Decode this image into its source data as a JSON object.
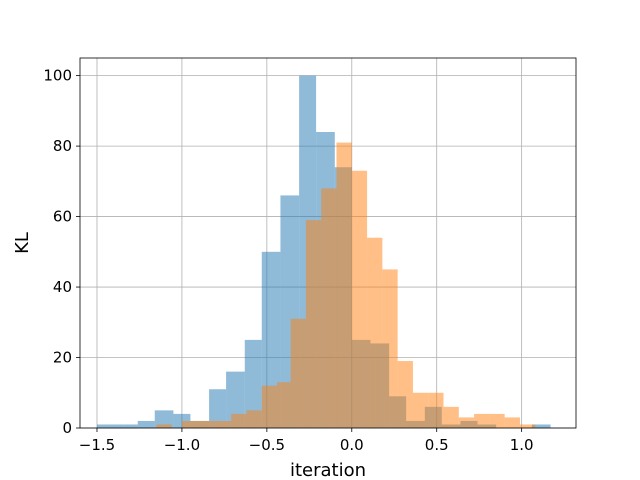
{
  "chart_data": {
    "type": "bar",
    "xlabel": "iteration",
    "ylabel": "KL",
    "xlim": [
      -1.6,
      1.32
    ],
    "ylim": [
      0,
      105
    ],
    "x_ticks": [
      -1.5,
      -1.0,
      -0.5,
      0.0,
      0.5,
      1.0
    ],
    "x_tick_labels": [
      "−1.5",
      "−1.0",
      "−0.5",
      "0.0",
      "0.5",
      "1.0"
    ],
    "y_ticks": [
      0,
      20,
      40,
      60,
      80,
      100
    ],
    "y_tick_labels": [
      "0",
      "20",
      "40",
      "60",
      "80",
      "100"
    ],
    "grid": true,
    "series": [
      {
        "color": "#1f77b4",
        "opacity": 0.5,
        "bins": [
          {
            "x0": -1.5,
            "x1": -1.34,
            "count": 1
          },
          {
            "x0": -1.34,
            "x1": -1.26,
            "count": 1
          },
          {
            "x0": -1.26,
            "x1": -1.16,
            "count": 2
          },
          {
            "x0": -1.16,
            "x1": -1.05,
            "count": 5
          },
          {
            "x0": -1.05,
            "x1": -0.95,
            "count": 4
          },
          {
            "x0": -0.95,
            "x1": -0.84,
            "count": 2
          },
          {
            "x0": -0.84,
            "x1": -0.74,
            "count": 11
          },
          {
            "x0": -0.74,
            "x1": -0.63,
            "count": 16
          },
          {
            "x0": -0.63,
            "x1": -0.53,
            "count": 25
          },
          {
            "x0": -0.53,
            "x1": -0.42,
            "count": 50
          },
          {
            "x0": -0.42,
            "x1": -0.31,
            "count": 66
          },
          {
            "x0": -0.31,
            "x1": -0.21,
            "count": 100
          },
          {
            "x0": -0.21,
            "x1": -0.1,
            "count": 84
          },
          {
            "x0": -0.1,
            "x1": 0.0,
            "count": 74
          },
          {
            "x0": 0.0,
            "x1": 0.11,
            "count": 25
          },
          {
            "x0": 0.11,
            "x1": 0.22,
            "count": 24
          },
          {
            "x0": 0.22,
            "x1": 0.32,
            "count": 9
          },
          {
            "x0": 0.32,
            "x1": 0.43,
            "count": 2
          },
          {
            "x0": 0.43,
            "x1": 0.53,
            "count": 6
          },
          {
            "x0": 0.53,
            "x1": 0.64,
            "count": 1
          },
          {
            "x0": 0.64,
            "x1": 0.74,
            "count": 2
          },
          {
            "x0": 0.74,
            "x1": 0.85,
            "count": 1
          },
          {
            "x0": 1.06,
            "x1": 1.17,
            "count": 1
          }
        ]
      },
      {
        "color": "#ff7f0e",
        "opacity": 0.5,
        "bins": [
          {
            "x0": -1.15,
            "x1": -1.06,
            "count": 1
          },
          {
            "x0": -1.0,
            "x1": -0.85,
            "count": 2
          },
          {
            "x0": -0.85,
            "x1": -0.71,
            "count": 2
          },
          {
            "x0": -0.71,
            "x1": -0.62,
            "count": 4
          },
          {
            "x0": -0.62,
            "x1": -0.53,
            "count": 5
          },
          {
            "x0": -0.53,
            "x1": -0.44,
            "count": 12
          },
          {
            "x0": -0.44,
            "x1": -0.36,
            "count": 13
          },
          {
            "x0": -0.36,
            "x1": -0.27,
            "count": 31
          },
          {
            "x0": -0.27,
            "x1": -0.18,
            "count": 59
          },
          {
            "x0": -0.18,
            "x1": -0.09,
            "count": 68
          },
          {
            "x0": -0.09,
            "x1": 0.0,
            "count": 81
          },
          {
            "x0": 0.0,
            "x1": 0.09,
            "count": 73
          },
          {
            "x0": 0.09,
            "x1": 0.18,
            "count": 54
          },
          {
            "x0": 0.18,
            "x1": 0.27,
            "count": 45
          },
          {
            "x0": 0.27,
            "x1": 0.36,
            "count": 19
          },
          {
            "x0": 0.36,
            "x1": 0.45,
            "count": 10
          },
          {
            "x0": 0.45,
            "x1": 0.54,
            "count": 10
          },
          {
            "x0": 0.54,
            "x1": 0.63,
            "count": 6
          },
          {
            "x0": 0.63,
            "x1": 0.72,
            "count": 3
          },
          {
            "x0": 0.72,
            "x1": 0.81,
            "count": 4
          },
          {
            "x0": 0.81,
            "x1": 0.9,
            "count": 4
          },
          {
            "x0": 0.9,
            "x1": 0.99,
            "count": 3
          },
          {
            "x0": 0.99,
            "x1": 1.08,
            "count": 1
          }
        ]
      }
    ]
  }
}
